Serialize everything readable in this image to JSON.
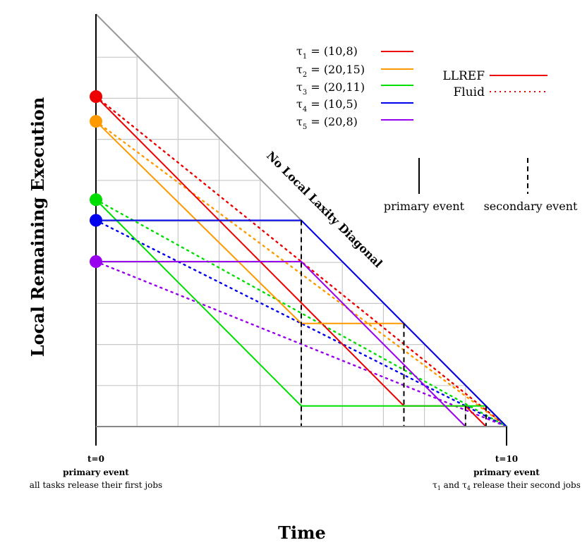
{
  "axis_labels": {
    "y": "Local Remaining Execution",
    "x": "Time"
  },
  "diagonal_label": "No Local Laxity Diagonal",
  "tasks": [
    {
      "sym": "τ",
      "sub": "1",
      "params": " = (10,8)",
      "color": "#ee0000"
    },
    {
      "sym": "τ",
      "sub": "2",
      "params": " = (20,15)",
      "color": "#ff9900"
    },
    {
      "sym": "τ",
      "sub": "3",
      "params": " = (20,11)",
      "color": "#00dd00"
    },
    {
      "sym": "τ",
      "sub": "4",
      "params": " = (10,5)",
      "color": "#0000ee"
    },
    {
      "sym": "τ",
      "sub": "5",
      "params": " = (20,8)",
      "color": "#9900ee"
    }
  ],
  "line_legend": {
    "llref": "LLREF",
    "fluid": "Fluid"
  },
  "event_legend": {
    "primary": "primary event",
    "secondary": "secondary event"
  },
  "start_event": {
    "time": "t=0",
    "kind": "primary event",
    "desc": "all tasks release their first jobs"
  },
  "end_event": {
    "time": "t=10",
    "kind": "primary event",
    "desc_sym1": "τ",
    "desc_sub1": "1",
    "desc_mid": " and ",
    "desc_sym2": "τ",
    "desc_sub2": "4",
    "desc_tail": " release their second jobs"
  },
  "chart_data": {
    "type": "line",
    "xlim": [
      0,
      10
    ],
    "ylim": [
      0,
      10
    ],
    "grid": true,
    "initial_remaining": [
      8,
      7.4,
      5.5,
      5,
      4
    ],
    "llref": [
      {
        "task": "τ1",
        "points": [
          [
            0,
            8
          ],
          [
            5,
            3
          ],
          [
            7.5,
            0.5
          ],
          [
            9,
            0.5
          ],
          [
            9.5,
            0
          ],
          [
            10,
            0
          ]
        ]
      },
      {
        "task": "τ2",
        "points": [
          [
            0,
            7.4
          ],
          [
            5,
            2.5
          ],
          [
            7.5,
            2.5
          ],
          [
            10,
            0
          ]
        ]
      },
      {
        "task": "τ3",
        "points": [
          [
            0,
            5.5
          ],
          [
            5,
            0.5
          ],
          [
            9,
            0.5
          ],
          [
            9.5,
            0.5
          ],
          [
            10,
            0
          ]
        ]
      },
      {
        "task": "τ4",
        "points": [
          [
            0,
            5
          ],
          [
            5,
            5
          ],
          [
            10,
            0
          ]
        ]
      },
      {
        "task": "τ5",
        "points": [
          [
            0,
            4
          ],
          [
            5,
            4
          ],
          [
            9,
            0
          ],
          [
            10,
            0
          ]
        ]
      }
    ],
    "fluid": [
      {
        "task": "τ1",
        "points": [
          [
            0,
            8
          ],
          [
            10,
            0
          ]
        ]
      },
      {
        "task": "τ2",
        "points": [
          [
            0,
            7.4
          ],
          [
            10,
            0
          ]
        ]
      },
      {
        "task": "τ3",
        "points": [
          [
            0,
            5.5
          ],
          [
            10,
            0
          ]
        ]
      },
      {
        "task": "τ4",
        "points": [
          [
            0,
            5
          ],
          [
            10,
            0
          ]
        ]
      },
      {
        "task": "τ5",
        "points": [
          [
            0,
            4
          ],
          [
            10,
            0
          ]
        ]
      }
    ],
    "primary_events": [
      0,
      10
    ],
    "secondary_events": [
      5,
      7.5,
      9,
      9.5
    ]
  }
}
